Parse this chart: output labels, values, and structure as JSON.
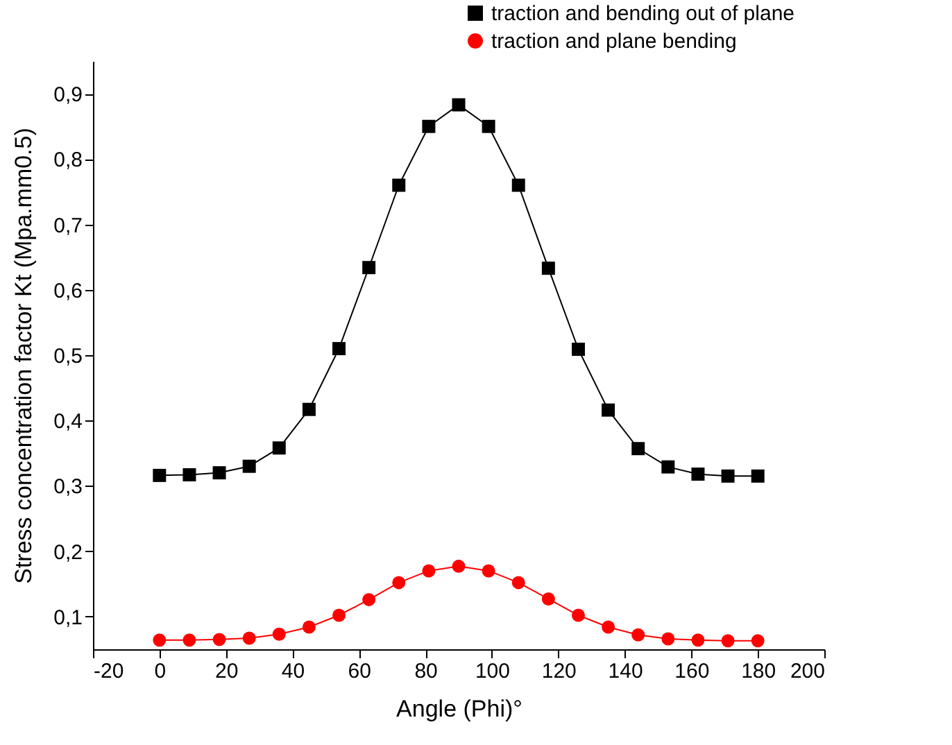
{
  "chart_data": {
    "type": "line",
    "xlabel": "Angle (Phi)°",
    "ylabel": "Stress concentration factor Kt (Mpa.mm0.5)",
    "x": [
      0,
      9,
      18,
      27,
      36,
      45,
      54,
      63,
      72,
      81,
      90,
      99,
      108,
      117,
      126,
      135,
      144,
      153,
      162,
      171,
      180
    ],
    "series": [
      {
        "name": "traction and bending out of plane",
        "color": "#000000",
        "marker": "square",
        "values": [
          0.316,
          0.317,
          0.32,
          0.33,
          0.358,
          0.417,
          0.51,
          0.634,
          0.76,
          0.85,
          0.883,
          0.85,
          0.76,
          0.633,
          0.509,
          0.416,
          0.357,
          0.329,
          0.318,
          0.315,
          0.315
        ]
      },
      {
        "name": "traction and plane bending",
        "color": "#ff0000",
        "marker": "circle",
        "values": [
          0.064,
          0.064,
          0.065,
          0.067,
          0.073,
          0.084,
          0.102,
          0.126,
          0.152,
          0.17,
          0.177,
          0.17,
          0.152,
          0.127,
          0.102,
          0.084,
          0.072,
          0.066,
          0.064,
          0.063,
          0.063
        ]
      }
    ],
    "xlim": [
      -20,
      200
    ],
    "xticks": [
      -20,
      0,
      20,
      40,
      60,
      80,
      100,
      120,
      140,
      160,
      180,
      200
    ],
    "ylim": [
      0.05,
      0.95
    ],
    "yticks": [
      {
        "value": 0.1,
        "label": "0,1"
      },
      {
        "value": 0.2,
        "label": "0,2"
      },
      {
        "value": 0.3,
        "label": "0,3"
      },
      {
        "value": 0.4,
        "label": "0,4"
      },
      {
        "value": 0.5,
        "label": "0,5"
      },
      {
        "value": 0.6,
        "label": "0,6"
      },
      {
        "value": 0.7,
        "label": "0,7"
      },
      {
        "value": 0.8,
        "label": "0,8"
      },
      {
        "value": 0.9,
        "label": "0,9"
      }
    ],
    "grid": false,
    "legend": "top right",
    "line_style": "solid"
  }
}
